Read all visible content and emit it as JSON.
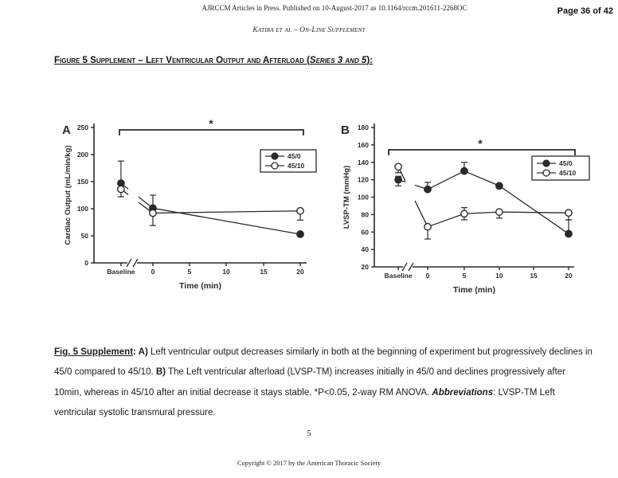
{
  "page": {
    "header_line": "AJRCCM Articles in Press. Published on 10-August-2017 as 10.1164/rccm.201611-2268OC",
    "page_indicator": "Page 36 of 42",
    "running_head": "Katira et al – On-Line Supplement",
    "page_number": "5",
    "copyright": "Copyright © 2017 by the American Thoracic Society"
  },
  "figure": {
    "heading_segments": [
      {
        "t": "Figure 5 Supplement – Left Ventricular Output and Afterload ("
      },
      {
        "t": "Series 3 and 5",
        "i": 1
      },
      {
        "t": "):"
      }
    ]
  },
  "caption": {
    "segments": [
      {
        "t": "Fig. 5 Supplement",
        "b": 1,
        "u": 1
      },
      {
        "t": ": ",
        "b": 1
      },
      {
        "t": "A)",
        "b": 1
      },
      {
        "t": " Left ventricular output decreases similarly in both at the beginning of experiment but progressively declines in",
        "br": 1
      },
      {
        "t": "45/0 compared to 45/10. "
      },
      {
        "t": "B)",
        "b": 1
      },
      {
        "t": " The Left ventricular afterload (LVSP-TM) increases initially in 45/0 and declines progressively after",
        "br": 1
      },
      {
        "t": "10min, whereas in 45/10 after an initial decrease it stays stable. *P<0.05, 2-way RM ANOVA. "
      },
      {
        "t": "Abbreviations",
        "b": 1,
        "i": 1
      },
      {
        "t": ": LVSP-TM Left",
        "br": 1
      },
      {
        "t": "ventricular systolic transmural pressure."
      }
    ]
  },
  "chart_data": [
    {
      "panel": "A",
      "type": "line",
      "xlabel": "Time (min)",
      "ylabel": "Cardiac Output (mL/min/kg)",
      "ylim": [
        0,
        250
      ],
      "ytick_step": 50,
      "categories": [
        "Baseline",
        "0",
        "5",
        "10",
        "15",
        "20"
      ],
      "x_axis_break": "between Baseline and 0",
      "significance": "*",
      "legend_position": "top-right",
      "legend": [
        "45/0",
        "45/10"
      ],
      "series": [
        {
          "name": "45/0",
          "marker": "filled-circle",
          "points": [
            {
              "x": "Baseline",
              "y": 147,
              "err_up": 41
            },
            {
              "x": "0",
              "y": 101,
              "err_up": 24
            },
            {
              "x": "20",
              "y": 53
            }
          ]
        },
        {
          "name": "45/10",
          "marker": "open-circle",
          "points": [
            {
              "x": "Baseline",
              "y": 136,
              "err_down": 14
            },
            {
              "x": "0",
              "y": 92,
              "err_down": 23
            },
            {
              "x": "20",
              "y": 96,
              "err_down": 17
            }
          ]
        }
      ]
    },
    {
      "panel": "B",
      "type": "line",
      "xlabel": "Time (min)",
      "ylabel": "LVSP-TM (mmHg)",
      "ylim": [
        20,
        180
      ],
      "ytick_step": 20,
      "categories": [
        "Baseline",
        "0",
        "5",
        "10",
        "15",
        "20"
      ],
      "x_axis_break": "between Baseline and 0",
      "significance": "*",
      "legend_position": "top-right",
      "legend": [
        "45/0",
        "45/10"
      ],
      "series": [
        {
          "name": "45/0",
          "marker": "filled-circle",
          "points": [
            {
              "x": "Baseline",
              "y": 120,
              "err_up": 4,
              "err_down": 7
            },
            {
              "x": "0",
              "y": 109,
              "err_up": 8
            },
            {
              "x": "5",
              "y": 130,
              "err_up": 10
            },
            {
              "x": "10",
              "y": 113,
              "err_up": 2
            },
            {
              "x": "20",
              "y": 58,
              "err_up": 16
            }
          ]
        },
        {
          "name": "45/10",
          "marker": "open-circle",
          "points": [
            {
              "x": "Baseline",
              "y": 135,
              "err_down": 7
            },
            {
              "x": "0",
              "y": 66,
              "err_down": 14
            },
            {
              "x": "5",
              "y": 81,
              "err_up": 7,
              "err_down": 7
            },
            {
              "x": "10",
              "y": 83,
              "err_down": 7
            },
            {
              "x": "20",
              "y": 82,
              "err_down": 8
            }
          ]
        }
      ]
    }
  ]
}
